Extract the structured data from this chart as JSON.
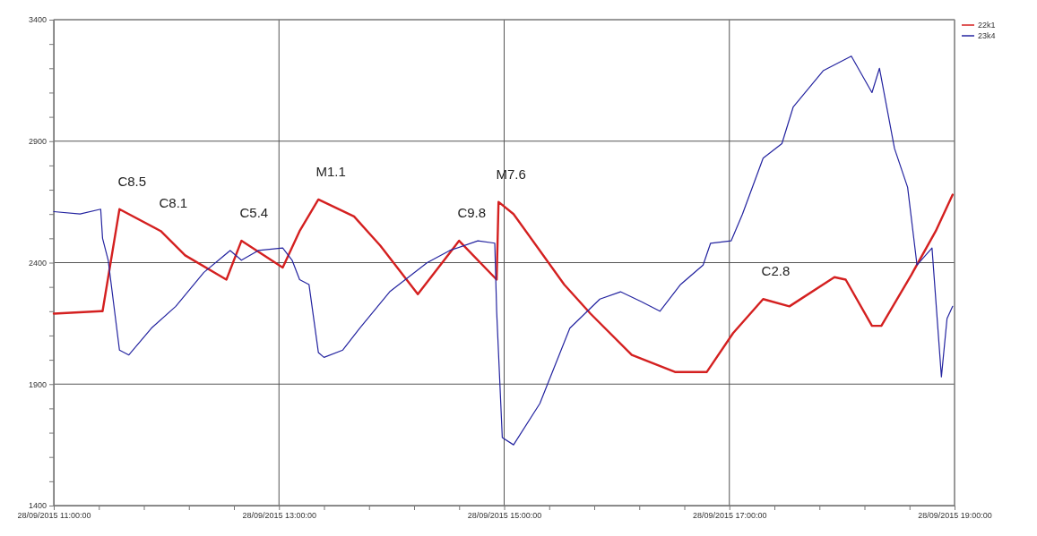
{
  "chart_data": {
    "type": "line",
    "xlim": [
      "2015-09-28T11:00",
      "2015-09-28T19:00"
    ],
    "xticks": [
      {
        "value": "2015-09-28T11:00",
        "label": "28/09/2015 11:00:00"
      },
      {
        "value": "2015-09-28T11:24",
        "label": null
      },
      {
        "value": "2015-09-28T11:48",
        "label": null
      },
      {
        "value": "2015-09-28T12:12",
        "label": null
      },
      {
        "value": "2015-09-28T12:36",
        "label": null
      },
      {
        "value": "2015-09-28T13:00",
        "label": "28/09/2015 13:00:00"
      },
      {
        "value": "2015-09-28T13:24",
        "label": null
      },
      {
        "value": "2015-09-28T13:48",
        "label": null
      },
      {
        "value": "2015-09-28T14:12",
        "label": null
      },
      {
        "value": "2015-09-28T14:36",
        "label": null
      },
      {
        "value": "2015-09-28T15:00",
        "label": "28/09/2015 15:00:00"
      },
      {
        "value": "2015-09-28T15:24",
        "label": null
      },
      {
        "value": "2015-09-28T15:48",
        "label": null
      },
      {
        "value": "2015-09-28T16:12",
        "label": null
      },
      {
        "value": "2015-09-28T16:36",
        "label": null
      },
      {
        "value": "2015-09-28T17:00",
        "label": "28/09/2015 17:00:00"
      },
      {
        "value": "2015-09-28T17:24",
        "label": null
      },
      {
        "value": "2015-09-28T17:48",
        "label": null
      },
      {
        "value": "2015-09-28T18:12",
        "label": null
      },
      {
        "value": "2015-09-28T18:36",
        "label": null
      },
      {
        "value": "2015-09-28T19:00",
        "label": "28/09/2015 19:00:00"
      }
    ],
    "ylim": [
      1400,
      3400
    ],
    "yticks": [
      1400,
      {
        "value": 1500,
        "label": null
      },
      {
        "value": 1600,
        "label": null
      },
      {
        "value": 1700,
        "label": null
      },
      {
        "value": 1800,
        "label": null
      },
      1900,
      {
        "value": 2000,
        "label": null
      },
      {
        "value": 2100,
        "label": null
      },
      {
        "value": 2200,
        "label": null
      },
      {
        "value": 2300,
        "label": null
      },
      2400,
      {
        "value": 2500,
        "label": null
      },
      {
        "value": 2600,
        "label": null
      },
      {
        "value": 2700,
        "label": null
      },
      {
        "value": 2800,
        "label": null
      },
      2900,
      {
        "value": 3000,
        "label": null
      },
      {
        "value": 3100,
        "label": null
      },
      {
        "value": 3200,
        "label": null
      },
      {
        "value": 3300,
        "label": null
      },
      3400
    ],
    "grid": true,
    "legend": "top right",
    "series": [
      {
        "name": "22k1",
        "color": "#d42020",
        "x": [
          "2015-09-28T11:00",
          "2015-09-28T11:25",
          "2015-09-28T11:26",
          "2015-09-28T11:35",
          "2015-09-28T11:57",
          "2015-09-28T12:10",
          "2015-09-28T12:32",
          "2015-09-28T12:40",
          "2015-09-28T13:02",
          "2015-09-28T13:11",
          "2015-09-28T13:21",
          "2015-09-28T13:40",
          "2015-09-28T13:54",
          "2015-09-28T14:14",
          "2015-09-28T14:36",
          "2015-09-28T14:56",
          "2015-09-28T14:57",
          "2015-09-28T15:05",
          "2015-09-28T15:32",
          "2015-09-28T15:46",
          "2015-09-28T16:08",
          "2015-09-28T16:31",
          "2015-09-28T16:48",
          "2015-09-28T17:02",
          "2015-09-28T17:18",
          "2015-09-28T17:32",
          "2015-09-28T17:56",
          "2015-09-28T18:02",
          "2015-09-28T18:16",
          "2015-09-28T18:21",
          "2015-09-28T18:37",
          "2015-09-28T18:50",
          "2015-09-28T18:59"
        ],
        "values": [
          2190,
          2200,
          2200,
          2620,
          2530,
          2430,
          2330,
          2490,
          2380,
          2530,
          2660,
          2590,
          2470,
          2270,
          2490,
          2330,
          2650,
          2600,
          2310,
          2190,
          2020,
          1950,
          1950,
          2110,
          2250,
          2220,
          2340,
          2330,
          2140,
          2140,
          2350,
          2530,
          2680
        ]
      },
      {
        "name": "23k4",
        "color": "#2424a0",
        "x": [
          "2015-09-28T11:00",
          "2015-09-28T11:14",
          "2015-09-28T11:25",
          "2015-09-28T11:26",
          "2015-09-28T11:29",
          "2015-09-28T11:35",
          "2015-09-28T11:40",
          "2015-09-28T11:52",
          "2015-09-28T12:05",
          "2015-09-28T12:20",
          "2015-09-28T12:34",
          "2015-09-28T12:40",
          "2015-09-28T12:49",
          "2015-09-28T13:02",
          "2015-09-28T13:07",
          "2015-09-28T13:11",
          "2015-09-28T13:16",
          "2015-09-28T13:21",
          "2015-09-28T13:24",
          "2015-09-28T13:34",
          "2015-09-28T13:43",
          "2015-09-28T13:59",
          "2015-09-28T14:19",
          "2015-09-28T14:31",
          "2015-09-28T14:46",
          "2015-09-28T14:55",
          "2015-09-28T14:56",
          "2015-09-28T14:59",
          "2015-09-28T15:05",
          "2015-09-28T15:19",
          "2015-09-28T15:35",
          "2015-09-28T15:51",
          "2015-09-28T16:02",
          "2015-09-28T16:13",
          "2015-09-28T16:23",
          "2015-09-28T16:34",
          "2015-09-28T16:46",
          "2015-09-28T16:50",
          "2015-09-28T17:01",
          "2015-09-28T17:07",
          "2015-09-28T17:18",
          "2015-09-28T17:28",
          "2015-09-28T17:34",
          "2015-09-28T17:50",
          "2015-09-28T18:05",
          "2015-09-28T18:16",
          "2015-09-28T18:20",
          "2015-09-28T18:28",
          "2015-09-28T18:35",
          "2015-09-28T18:40",
          "2015-09-28T18:48",
          "2015-09-28T18:53",
          "2015-09-28T18:56",
          "2015-09-28T18:59"
        ],
        "values": [
          2610,
          2600,
          2620,
          2500,
          2410,
          2040,
          2020,
          2130,
          2220,
          2360,
          2450,
          2410,
          2450,
          2460,
          2410,
          2330,
          2310,
          2030,
          2010,
          2040,
          2130,
          2280,
          2400,
          2450,
          2490,
          2480,
          2200,
          1680,
          1650,
          1820,
          2130,
          2250,
          2280,
          2240,
          2200,
          2310,
          2390,
          2480,
          2490,
          2600,
          2830,
          2890,
          3040,
          3190,
          3250,
          3100,
          3200,
          2870,
          2710,
          2390,
          2460,
          1930,
          2170,
          2220
        ]
      }
    ],
    "annotations": [
      {
        "text": "C8.5",
        "x": "2015-09-28T11:35",
        "y": 2620
      },
      {
        "text": "C8.1",
        "x": "2015-09-28T11:57",
        "y": 2530
      },
      {
        "text": "C5.4",
        "x": "2015-09-28T12:40",
        "y": 2490
      },
      {
        "text": "M1.1",
        "x": "2015-09-28T13:21",
        "y": 2660
      },
      {
        "text": "C9.8",
        "x": "2015-09-28T14:36",
        "y": 2490
      },
      {
        "text": "M7.6",
        "x": "2015-09-28T14:57",
        "y": 2650
      },
      {
        "text": "C2.8",
        "x": "2015-09-28T17:18",
        "y": 2250
      }
    ]
  }
}
